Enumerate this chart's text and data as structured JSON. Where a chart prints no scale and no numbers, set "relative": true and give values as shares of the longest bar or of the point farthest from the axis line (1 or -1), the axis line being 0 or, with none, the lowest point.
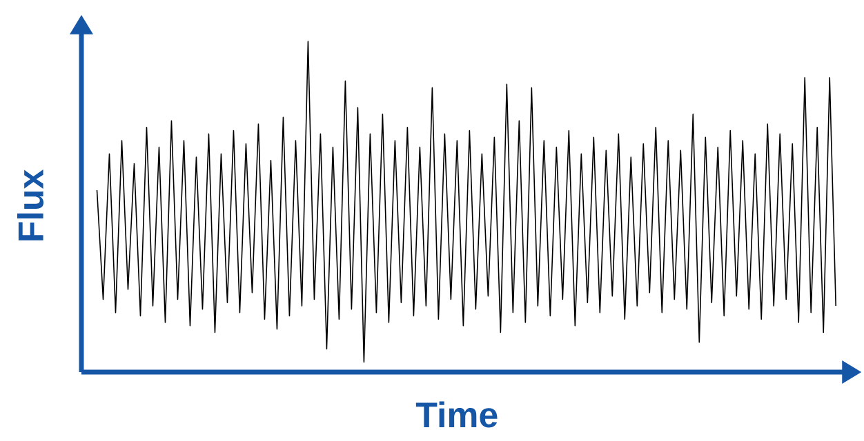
{
  "chart_data": {
    "type": "line",
    "xlabel": "Time",
    "ylabel": "Flux",
    "relative": true,
    "color": "#000000",
    "categories": [
      null,
      null,
      null,
      null,
      null,
      null,
      null,
      null,
      null,
      null,
      null,
      null,
      null,
      null,
      null,
      null,
      null,
      null,
      null,
      null,
      null,
      null,
      null,
      null,
      null,
      null,
      null,
      null,
      null,
      null,
      null,
      null,
      null,
      null,
      null,
      null,
      null,
      null,
      null,
      null,
      null,
      null,
      null,
      null,
      null,
      null,
      null,
      null,
      null,
      null,
      null,
      null,
      null,
      null,
      null,
      null,
      null,
      null,
      null,
      null,
      null,
      null,
      null,
      null,
      null,
      null,
      null,
      null,
      null,
      null,
      null,
      null,
      null,
      null,
      null,
      null,
      null,
      null,
      null,
      null,
      null,
      null,
      null,
      null,
      null,
      null,
      null,
      null,
      null,
      null,
      null,
      null,
      null,
      null,
      null,
      null,
      null,
      null,
      null,
      null,
      null,
      null,
      null,
      null,
      null,
      null,
      null,
      null,
      null,
      null,
      null,
      null,
      null,
      null,
      null,
      null,
      null,
      null,
      null,
      null
    ],
    "values": [
      0.55,
      0.22,
      0.66,
      0.18,
      0.7,
      0.25,
      0.63,
      0.17,
      0.74,
      0.2,
      0.68,
      0.15,
      0.76,
      0.22,
      0.7,
      0.14,
      0.65,
      0.19,
      0.72,
      0.12,
      0.66,
      0.21,
      0.73,
      0.18,
      0.69,
      0.24,
      0.75,
      0.16,
      0.64,
      0.13,
      0.77,
      0.17,
      0.7,
      0.2,
      1.0,
      0.22,
      0.72,
      0.07,
      0.68,
      0.16,
      0.88,
      0.19,
      0.8,
      0.03,
      0.72,
      0.18,
      0.78,
      0.15,
      0.7,
      0.21,
      0.74,
      0.17,
      0.68,
      0.2,
      0.86,
      0.16,
      0.72,
      0.22,
      0.7,
      0.14,
      0.73,
      0.19,
      0.66,
      0.23,
      0.71,
      0.12,
      0.87,
      0.18,
      0.76,
      0.15,
      0.86,
      0.2,
      0.7,
      0.17,
      0.68,
      0.22,
      0.73,
      0.14,
      0.66,
      0.21,
      0.71,
      0.18,
      0.67,
      0.23,
      0.72,
      0.16,
      0.65,
      0.2,
      0.69,
      0.24,
      0.74,
      0.18,
      0.7,
      0.22,
      0.67,
      0.19,
      0.78,
      0.09,
      0.71,
      0.21,
      0.68,
      0.17,
      0.73,
      0.23,
      0.7,
      0.19,
      0.66,
      0.16,
      0.75,
      0.2,
      0.72,
      0.22,
      0.69,
      0.15,
      0.89,
      0.18,
      0.74,
      0.12,
      0.89,
      0.2
    ]
  }
}
